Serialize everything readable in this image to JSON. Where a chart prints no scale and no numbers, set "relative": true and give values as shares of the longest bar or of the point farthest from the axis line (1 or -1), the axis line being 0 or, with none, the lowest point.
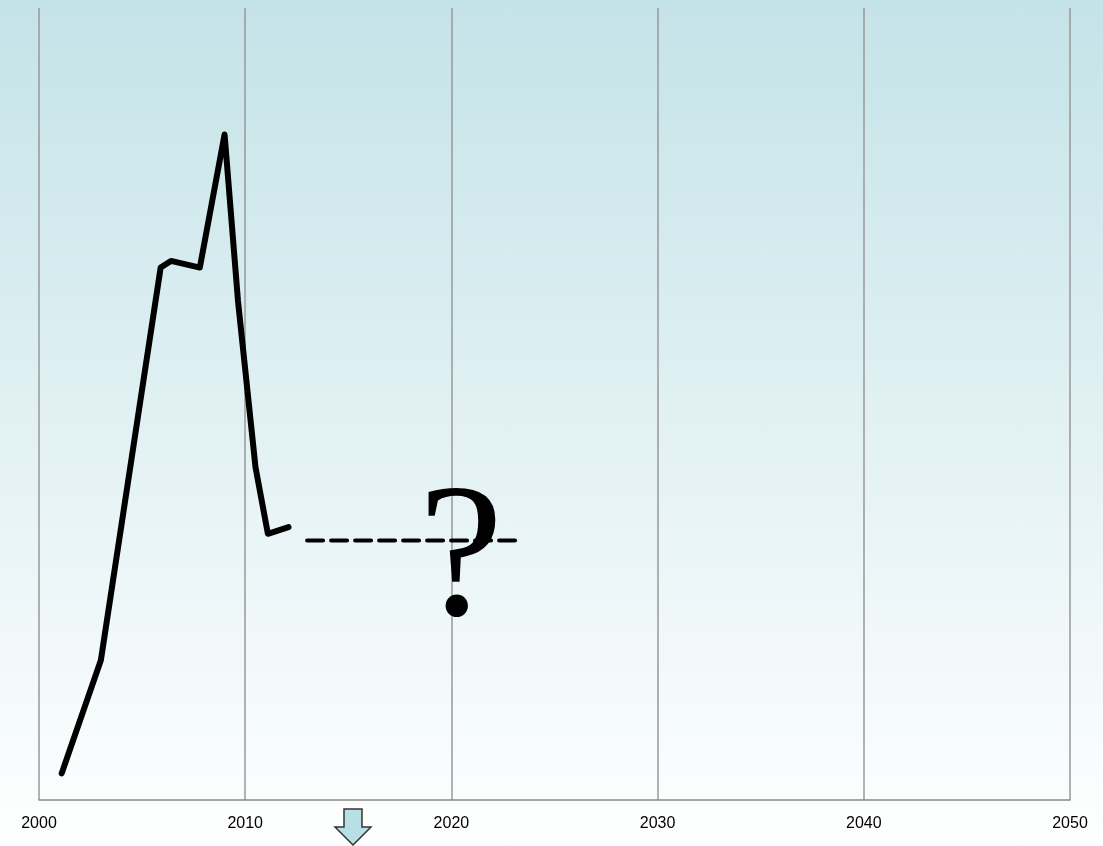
{
  "chart_data": {
    "type": "line",
    "relative": true,
    "xlim": [
      2000,
      2050
    ],
    "xticks": [
      2000,
      2010,
      2020,
      2030,
      2040,
      2050
    ],
    "grid": "x",
    "marker": "none",
    "series": [
      {
        "color": "#000000",
        "line_style": "solid",
        "x": [
          2001.1,
          2003.0,
          2005.9,
          2006.4,
          2007.8,
          2009.0,
          2009.65,
          2010.5,
          2011.1,
          2012.1
        ],
        "values": [
          0.04,
          0.21,
          0.8,
          0.81,
          0.8,
          1.0,
          0.75,
          0.5,
          0.4,
          0.41
        ]
      },
      {
        "color": "#000000",
        "line_style": "dashed",
        "x": [
          2013.0,
          2023.1
        ],
        "values": [
          0.39,
          0.39
        ]
      }
    ],
    "annotations": [
      "?"
    ]
  }
}
